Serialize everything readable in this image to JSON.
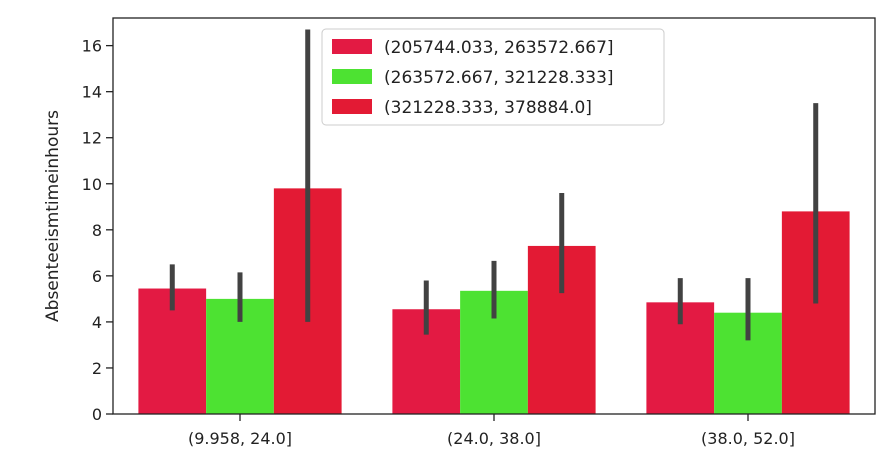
{
  "chart_data": {
    "type": "bar",
    "title": "",
    "xlabel": "",
    "ylabel": "Absenteeismtimeinhours",
    "categories": [
      "(9.958, 24.0]",
      "(24.0, 38.0]",
      "(38.0, 52.0]"
    ],
    "ylim": [
      0,
      17.2
    ],
    "yticks": [
      0,
      2,
      4,
      6,
      8,
      10,
      12,
      14,
      16
    ],
    "grid": false,
    "legend_position": "top-center",
    "series": [
      {
        "name": "(205744.033, 263572.667]",
        "color": "#e31a43",
        "values": [
          5.45,
          4.55,
          4.85
        ],
        "error_low": [
          4.5,
          3.45,
          3.9
        ],
        "error_high": [
          6.5,
          5.8,
          5.9
        ]
      },
      {
        "name": "(263572.667, 321228.333]",
        "color": "#4de232",
        "values": [
          5.0,
          5.35,
          4.4
        ],
        "error_low": [
          4.0,
          4.15,
          3.2
        ],
        "error_high": [
          6.15,
          6.65,
          5.9
        ]
      },
      {
        "name": "(321228.333, 378884.0]",
        "color": "#e31a34",
        "values": [
          9.8,
          7.3,
          8.8
        ],
        "error_low": [
          4.0,
          5.25,
          4.8
        ],
        "error_high": [
          16.7,
          9.6,
          13.5
        ]
      }
    ]
  }
}
